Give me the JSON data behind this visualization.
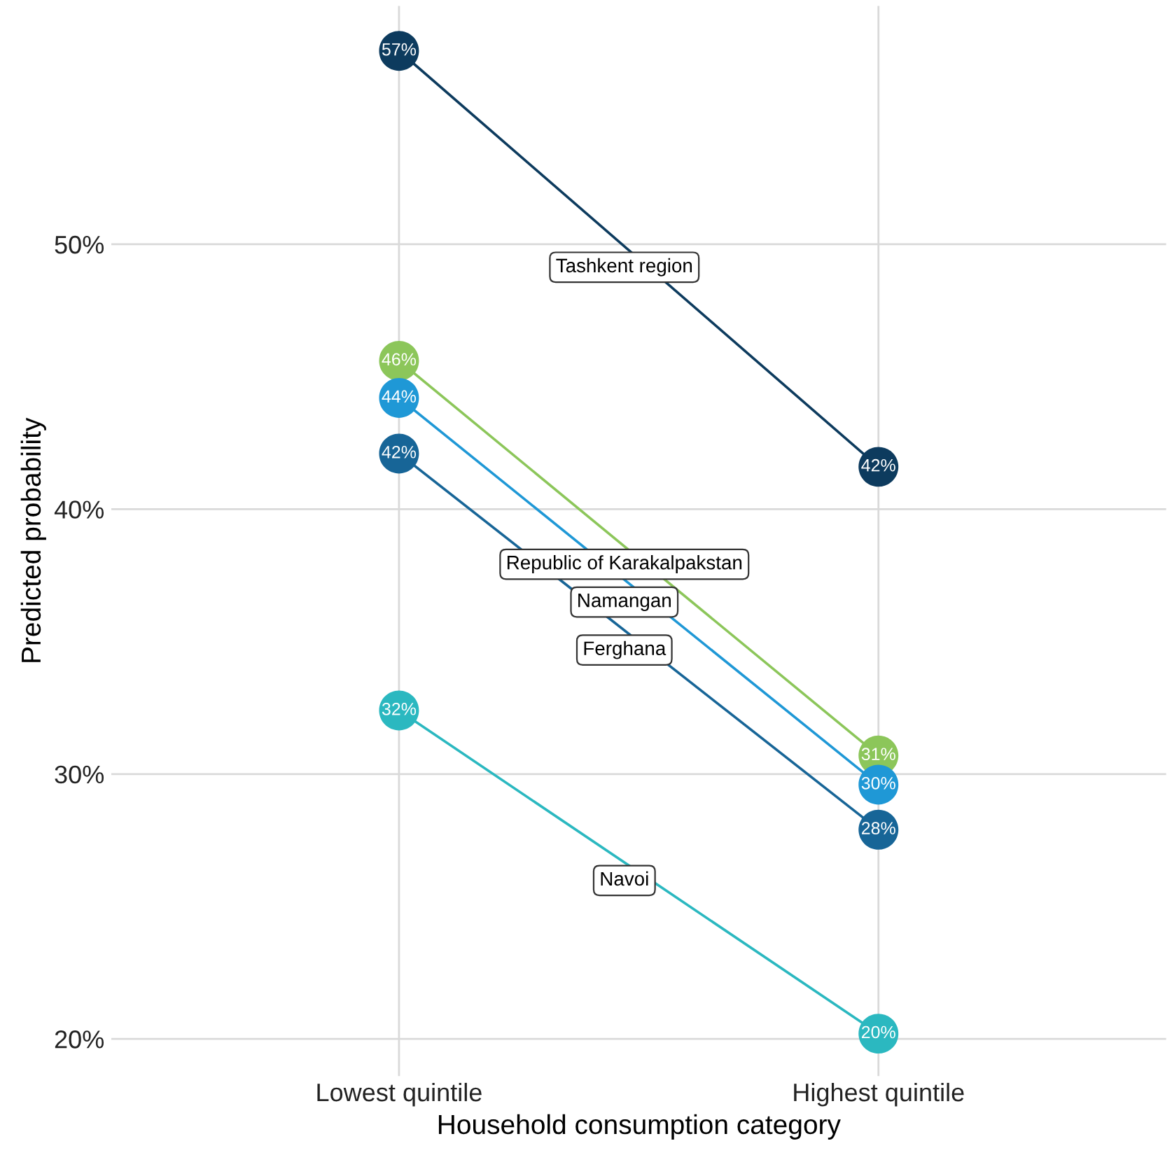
{
  "chart_data": {
    "type": "line",
    "xlabel": "Household consumption category",
    "ylabel": "Predicted probability",
    "categories": [
      "Lowest quintile",
      "Highest quintile"
    ],
    "series": [
      {
        "name": "Tashkent region",
        "color": "#0d3b5e",
        "values": [
          57.3,
          41.6
        ],
        "value_labels": [
          "57%",
          "42%"
        ]
      },
      {
        "name": "Republic of Karakalpakstan",
        "color": "#8cc65a",
        "values": [
          45.6,
          30.7
        ],
        "value_labels": [
          "46%",
          "31%"
        ]
      },
      {
        "name": "Namangan",
        "color": "#1f98d6",
        "values": [
          44.2,
          29.6
        ],
        "value_labels": [
          "44%",
          "30%"
        ]
      },
      {
        "name": "Ferghana",
        "color": "#176597",
        "values": [
          42.1,
          27.9
        ],
        "value_labels": [
          "42%",
          "28%"
        ]
      },
      {
        "name": "Navoi",
        "color": "#2bb8c0",
        "values": [
          32.4,
          20.2
        ],
        "value_labels": [
          "32%",
          "20%"
        ]
      }
    ],
    "ylim": [
      18.6,
      59.0
    ],
    "yticks": [
      {
        "value": 20,
        "label": "20%"
      },
      {
        "value": 30,
        "label": "30%"
      },
      {
        "value": 40,
        "label": "40%"
      },
      {
        "value": 50,
        "label": "50%"
      }
    ],
    "grid": true,
    "marker": "circle",
    "line_style": "solid",
    "legend": false
  }
}
